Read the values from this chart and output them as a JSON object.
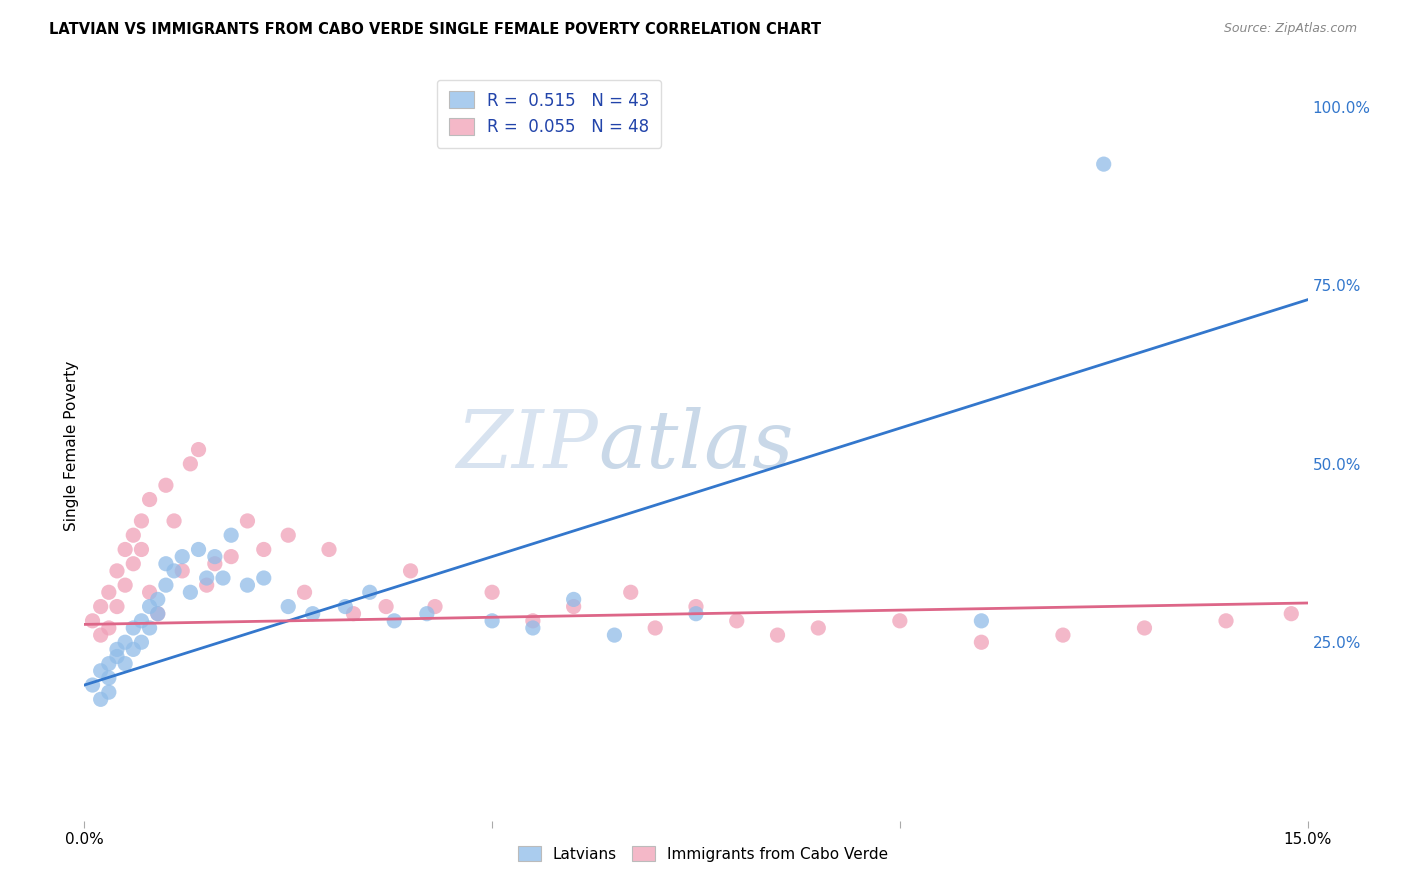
{
  "title": "LATVIAN VS IMMIGRANTS FROM CABO VERDE SINGLE FEMALE POVERTY CORRELATION CHART",
  "source": "Source: ZipAtlas.com",
  "ylabel": "Single Female Poverty",
  "ylabel_right_vals": [
    1.0,
    0.75,
    0.5,
    0.25
  ],
  "ylabel_right_labels": [
    "100.0%",
    "75.0%",
    "50.0%",
    "25.0%"
  ],
  "xmin": 0.0,
  "xmax": 0.15,
  "ymin": 0.0,
  "ymax": 1.05,
  "legend_R1": "0.515",
  "legend_N1": "43",
  "legend_R2": "0.055",
  "legend_N2": "48",
  "watermark_zip": "ZIP",
  "watermark_atlas": "atlas",
  "blue_scatter_color": "#90bce8",
  "pink_scatter_color": "#f0a0b8",
  "blue_fill": "#aaccee",
  "pink_fill": "#f4b8c8",
  "trend_blue": "#3377cc",
  "trend_pink": "#dd6688",
  "latvian_x": [
    0.001,
    0.002,
    0.002,
    0.003,
    0.003,
    0.003,
    0.004,
    0.004,
    0.005,
    0.005,
    0.006,
    0.006,
    0.007,
    0.007,
    0.008,
    0.008,
    0.009,
    0.009,
    0.01,
    0.01,
    0.011,
    0.012,
    0.013,
    0.014,
    0.015,
    0.016,
    0.017,
    0.018,
    0.02,
    0.022,
    0.025,
    0.028,
    0.032,
    0.035,
    0.038,
    0.042,
    0.05,
    0.055,
    0.06,
    0.065,
    0.075,
    0.11,
    0.125
  ],
  "latvian_y": [
    0.19,
    0.21,
    0.17,
    0.22,
    0.2,
    0.18,
    0.23,
    0.24,
    0.25,
    0.22,
    0.27,
    0.24,
    0.28,
    0.25,
    0.3,
    0.27,
    0.31,
    0.29,
    0.33,
    0.36,
    0.35,
    0.37,
    0.32,
    0.38,
    0.34,
    0.37,
    0.34,
    0.4,
    0.33,
    0.34,
    0.3,
    0.29,
    0.3,
    0.32,
    0.28,
    0.29,
    0.28,
    0.27,
    0.31,
    0.26,
    0.29,
    0.28,
    0.92
  ],
  "cabo_verde_x": [
    0.001,
    0.002,
    0.002,
    0.003,
    0.003,
    0.004,
    0.004,
    0.005,
    0.005,
    0.006,
    0.006,
    0.007,
    0.007,
    0.008,
    0.008,
    0.009,
    0.01,
    0.011,
    0.012,
    0.013,
    0.014,
    0.015,
    0.016,
    0.018,
    0.02,
    0.022,
    0.025,
    0.027,
    0.03,
    0.033,
    0.037,
    0.04,
    0.043,
    0.05,
    0.055,
    0.06,
    0.067,
    0.07,
    0.075,
    0.08,
    0.085,
    0.09,
    0.1,
    0.11,
    0.12,
    0.13,
    0.14,
    0.148
  ],
  "cabo_verde_y": [
    0.28,
    0.3,
    0.26,
    0.32,
    0.27,
    0.35,
    0.3,
    0.38,
    0.33,
    0.4,
    0.36,
    0.42,
    0.38,
    0.45,
    0.32,
    0.29,
    0.47,
    0.42,
    0.35,
    0.5,
    0.52,
    0.33,
    0.36,
    0.37,
    0.42,
    0.38,
    0.4,
    0.32,
    0.38,
    0.29,
    0.3,
    0.35,
    0.3,
    0.32,
    0.28,
    0.3,
    0.32,
    0.27,
    0.3,
    0.28,
    0.26,
    0.27,
    0.28,
    0.25,
    0.26,
    0.27,
    0.28,
    0.29
  ]
}
